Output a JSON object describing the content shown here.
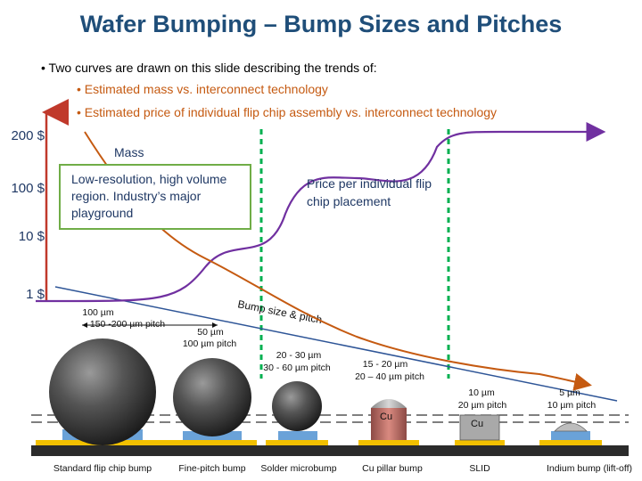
{
  "title": "Wafer Bumping – Bump Sizes and Pitches",
  "bullets": {
    "main": "• Two curves are drawn on this slide describing the trends of:",
    "sub": [
      "• Estimated mass vs. interconnect technology",
      "• Estimated price of individual flip chip assembly vs. interconnect technology"
    ]
  },
  "y_axis_labels": [
    "200 $",
    "100 $",
    "10 $",
    "1 $"
  ],
  "annotations": {
    "mass_label": "Mass",
    "high_volume": "Low-resolution, high volume region. Industry’s major playground",
    "price_label": "Price per individual flip chip placement",
    "trend_label": "Bump size & pitch"
  },
  "size_labels": [
    {
      "size": "100 µm",
      "pitch": "150 -200 µm pitch"
    },
    {
      "size": "50 µm",
      "pitch": "100 µm pitch"
    },
    {
      "size": "20 - 30 µm",
      "pitch": "30 - 60 µm pitch"
    },
    {
      "size": "15 - 20 µm",
      "pitch": "20 – 40 µm pitch"
    },
    {
      "size": "10 µm",
      "pitch": "20 µm pitch"
    },
    {
      "size": "5 µm",
      "pitch": "10 µm pitch"
    }
  ],
  "bump_labels": {
    "cu": "Cu",
    "cu_slid": "Cu"
  },
  "captions": [
    "Standard flip chip bump",
    "Fine-pitch bump",
    "Solder microbump",
    "Cu pillar bump",
    "SLID",
    "Indium bump (lift-off)"
  ],
  "colors": {
    "title": "#1f4e79",
    "mass_curve": "#c55a11",
    "price_curve": "#7030a0",
    "trend_line": "#2e5597",
    "divider": "#00b050",
    "text_dark": "#1f3864"
  }
}
